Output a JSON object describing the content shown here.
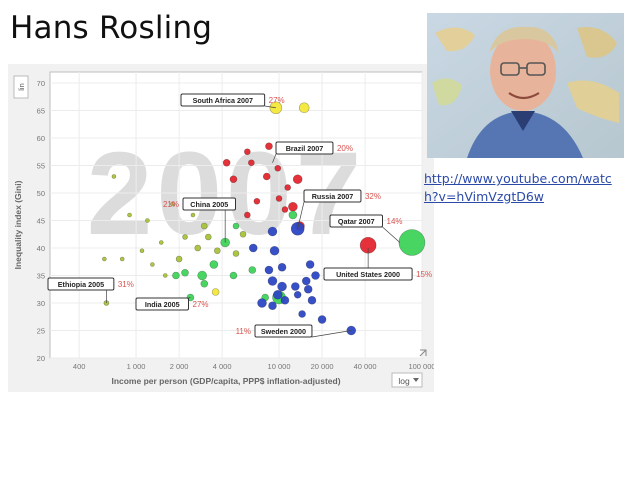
{
  "slide": {
    "title": "Hans Rosling",
    "link": "http://www.youtube.com/watch?v=hVimVzgtD6w"
  },
  "chart_data": {
    "type": "scatter",
    "year_watermark": "2007",
    "ylabel": "Inequality index (Gini)",
    "xlabel": "Income per person (GDP/capita, PPP$ inflation-adjusted)",
    "y_scale_label": "lin",
    "x_scale_label": "log",
    "x_scale": "log",
    "xlim": [
      250,
      100000
    ],
    "ylim": [
      20,
      72
    ],
    "x_ticks": [
      {
        "v": 400,
        "label": "400"
      },
      {
        "v": 1000,
        "label": "1 000"
      },
      {
        "v": 2000,
        "label": "2 000"
      },
      {
        "v": 4000,
        "label": "4 000"
      },
      {
        "v": 10000,
        "label": "10 000"
      },
      {
        "v": 20000,
        "label": "20 000"
      },
      {
        "v": 40000,
        "label": "40 000"
      },
      {
        "v": 100000,
        "label": "100 000"
      }
    ],
    "y_ticks": [
      {
        "v": 20,
        "label": "20"
      },
      {
        "v": 25,
        "label": "25"
      },
      {
        "v": 30,
        "label": "30"
      },
      {
        "v": 35,
        "label": "35"
      },
      {
        "v": 40,
        "label": "40"
      },
      {
        "v": 45,
        "label": "45"
      },
      {
        "v": 50,
        "label": "50"
      },
      {
        "v": 55,
        "label": "55"
      },
      {
        "v": 60,
        "label": "60"
      },
      {
        "v": 65,
        "label": "65"
      },
      {
        "v": 70,
        "label": "70"
      }
    ],
    "colors": {
      "yellow": "#f3e73a",
      "red": "#e3262f",
      "blue": "#2d47c4",
      "green": "#3fd35a",
      "olive": "#a8c33a",
      "label_pct": "#d9534f",
      "watermark": "#dcdcdc"
    },
    "annotations": [
      {
        "country": "South Africa 2007",
        "pct": "27%",
        "x": 9500,
        "y": 65.5
      },
      {
        "country": "Brazil 2007",
        "pct": "20%",
        "x": 9000,
        "y": 55.5
      },
      {
        "country": "China 2005",
        "pct": "21%",
        "x": 4200,
        "y": 41
      },
      {
        "country": "Russia 2007",
        "pct": "32%",
        "x": 13500,
        "y": 43.5
      },
      {
        "country": "Qatar 2007",
        "pct": "14%",
        "x": 70000,
        "y": 41
      },
      {
        "country": "United States 2000",
        "pct": "15%",
        "x": 42000,
        "y": 40
      },
      {
        "country": "Ethiopia 2005",
        "pct": "31%",
        "x": 620,
        "y": 30
      },
      {
        "country": "India 2005",
        "pct": "27%",
        "x": 2400,
        "y": 31
      },
      {
        "country": "Sweden 2000",
        "pct": "11%",
        "x": 32000,
        "y": 25
      }
    ],
    "points": [
      {
        "x": 9500,
        "y": 65.5,
        "s": 6,
        "c": "yellow"
      },
      {
        "x": 15000,
        "y": 65.5,
        "s": 5,
        "c": "yellow"
      },
      {
        "x": 6000,
        "y": 57.5,
        "s": 3,
        "c": "red"
      },
      {
        "x": 6400,
        "y": 55.5,
        "s": 3,
        "c": "red"
      },
      {
        "x": 8200,
        "y": 53,
        "s": 3.5,
        "c": "red"
      },
      {
        "x": 8500,
        "y": 58.5,
        "s": 3.5,
        "c": "red"
      },
      {
        "x": 11000,
        "y": 58.5,
        "s": 3.5,
        "c": "red"
      },
      {
        "x": 9800,
        "y": 54.5,
        "s": 3,
        "c": "red"
      },
      {
        "x": 4300,
        "y": 55.5,
        "s": 3.5,
        "c": "red"
      },
      {
        "x": 4800,
        "y": 52.5,
        "s": 3.5,
        "c": "red"
      },
      {
        "x": 11500,
        "y": 51,
        "s": 3,
        "c": "red"
      },
      {
        "x": 13500,
        "y": 52.5,
        "s": 4.5,
        "c": "red"
      },
      {
        "x": 10000,
        "y": 49,
        "s": 3,
        "c": "red"
      },
      {
        "x": 7000,
        "y": 48.5,
        "s": 3,
        "c": "red"
      },
      {
        "x": 12500,
        "y": 47.5,
        "s": 4.5,
        "c": "red"
      },
      {
        "x": 11000,
        "y": 47,
        "s": 3,
        "c": "red"
      },
      {
        "x": 6000,
        "y": 46,
        "s": 3,
        "c": "red"
      },
      {
        "x": 14000,
        "y": 44,
        "s": 4.5,
        "c": "red"
      },
      {
        "x": 13500,
        "y": 43.5,
        "s": 6.5,
        "c": "blue"
      },
      {
        "x": 12500,
        "y": 46,
        "s": 4,
        "c": "green"
      },
      {
        "x": 4200,
        "y": 41,
        "s": 4.5,
        "c": "green"
      },
      {
        "x": 5000,
        "y": 44,
        "s": 3,
        "c": "green"
      },
      {
        "x": 3500,
        "y": 37,
        "s": 4,
        "c": "green"
      },
      {
        "x": 3700,
        "y": 39.5,
        "s": 3,
        "c": "olive"
      },
      {
        "x": 3000,
        "y": 44,
        "s": 3,
        "c": "olive"
      },
      {
        "x": 3200,
        "y": 42,
        "s": 3,
        "c": "olive"
      },
      {
        "x": 2700,
        "y": 40,
        "s": 3,
        "c": "olive"
      },
      {
        "x": 2200,
        "y": 42,
        "s": 2.5,
        "c": "olive"
      },
      {
        "x": 2000,
        "y": 38,
        "s": 3,
        "c": "olive"
      },
      {
        "x": 1500,
        "y": 41,
        "s": 2,
        "c": "olive"
      },
      {
        "x": 1200,
        "y": 45,
        "s": 2,
        "c": "olive"
      },
      {
        "x": 900,
        "y": 46,
        "s": 2,
        "c": "olive"
      },
      {
        "x": 1100,
        "y": 39.5,
        "s": 2,
        "c": "olive"
      },
      {
        "x": 1300,
        "y": 37,
        "s": 2,
        "c": "olive"
      },
      {
        "x": 1600,
        "y": 35,
        "s": 2,
        "c": "olive"
      },
      {
        "x": 800,
        "y": 38,
        "s": 2,
        "c": "olive"
      },
      {
        "x": 600,
        "y": 38,
        "s": 2,
        "c": "olive"
      },
      {
        "x": 700,
        "y": 53,
        "s": 2,
        "c": "olive"
      },
      {
        "x": 1800,
        "y": 48,
        "s": 2,
        "c": "olive"
      },
      {
        "x": 2500,
        "y": 46,
        "s": 2,
        "c": "olive"
      },
      {
        "x": 620,
        "y": 30,
        "s": 2.5,
        "c": "olive"
      },
      {
        "x": 2400,
        "y": 31,
        "s": 3.5,
        "c": "green"
      },
      {
        "x": 2900,
        "y": 35,
        "s": 4.5,
        "c": "green"
      },
      {
        "x": 1900,
        "y": 35,
        "s": 3.5,
        "c": "green"
      },
      {
        "x": 2200,
        "y": 35.5,
        "s": 3.5,
        "c": "green"
      },
      {
        "x": 3000,
        "y": 33.5,
        "s": 3.5,
        "c": "green"
      },
      {
        "x": 4800,
        "y": 35,
        "s": 3.5,
        "c": "green"
      },
      {
        "x": 6500,
        "y": 36,
        "s": 3.5,
        "c": "green"
      },
      {
        "x": 8000,
        "y": 31,
        "s": 3.5,
        "c": "green"
      },
      {
        "x": 10000,
        "y": 31,
        "s": 6.5,
        "c": "green"
      },
      {
        "x": 85000,
        "y": 41,
        "s": 13,
        "c": "green"
      },
      {
        "x": 3600,
        "y": 32,
        "s": 3.5,
        "c": "yellow"
      },
      {
        "x": 42000,
        "y": 40.5,
        "s": 8,
        "c": "red"
      },
      {
        "x": 9000,
        "y": 43,
        "s": 4.5,
        "c": "blue"
      },
      {
        "x": 9300,
        "y": 39.5,
        "s": 4.5,
        "c": "blue"
      },
      {
        "x": 6600,
        "y": 40,
        "s": 4,
        "c": "blue"
      },
      {
        "x": 10500,
        "y": 36.5,
        "s": 4,
        "c": "blue"
      },
      {
        "x": 8500,
        "y": 36,
        "s": 4,
        "c": "blue"
      },
      {
        "x": 9000,
        "y": 34,
        "s": 4.5,
        "c": "blue"
      },
      {
        "x": 10500,
        "y": 33,
        "s": 4.5,
        "c": "blue"
      },
      {
        "x": 13000,
        "y": 33,
        "s": 4,
        "c": "blue"
      },
      {
        "x": 16500,
        "y": 37,
        "s": 4,
        "c": "blue"
      },
      {
        "x": 18000,
        "y": 35,
        "s": 4,
        "c": "blue"
      },
      {
        "x": 15500,
        "y": 34,
        "s": 4,
        "c": "blue"
      },
      {
        "x": 16000,
        "y": 32.5,
        "s": 4,
        "c": "blue"
      },
      {
        "x": 13500,
        "y": 31.5,
        "s": 3.5,
        "c": "blue"
      },
      {
        "x": 11000,
        "y": 30.5,
        "s": 4,
        "c": "blue"
      },
      {
        "x": 9800,
        "y": 31.5,
        "s": 4.5,
        "c": "blue"
      },
      {
        "x": 7600,
        "y": 30,
        "s": 4.5,
        "c": "blue"
      },
      {
        "x": 9000,
        "y": 29.5,
        "s": 4,
        "c": "blue"
      },
      {
        "x": 17000,
        "y": 30.5,
        "s": 4,
        "c": "blue"
      },
      {
        "x": 14500,
        "y": 28,
        "s": 3.5,
        "c": "blue"
      },
      {
        "x": 20000,
        "y": 27,
        "s": 4,
        "c": "blue"
      },
      {
        "x": 32000,
        "y": 25,
        "s": 4.5,
        "c": "blue"
      },
      {
        "x": 5000,
        "y": 39,
        "s": 3,
        "c": "olive"
      },
      {
        "x": 5600,
        "y": 42.5,
        "s": 3,
        "c": "olive"
      }
    ]
  }
}
